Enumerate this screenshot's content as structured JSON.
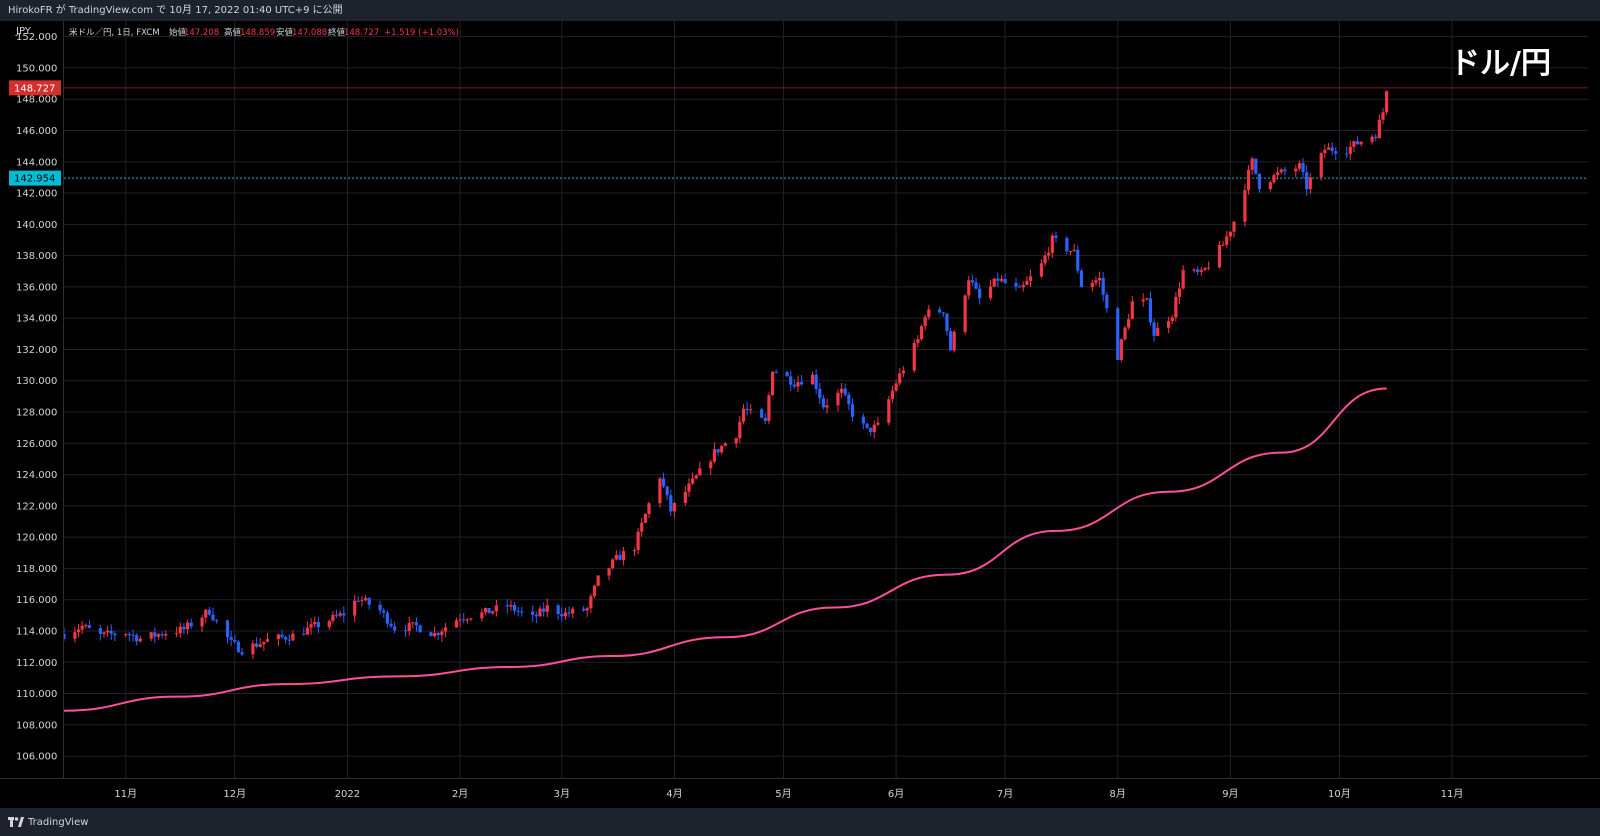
{
  "header": {
    "publish_text": "HirokoFR が TradingView.com で 10月 17, 2022 01:40 UTC+9 に公開"
  },
  "legend": {
    "symbol": "米ドル／円, 1日, FXCM",
    "open_label": "始値",
    "open_value": "147.208",
    "high_label": "高値",
    "high_value": "148.859",
    "low_label": "安値",
    "low_value": "147.088",
    "close_label": "終値",
    "close_value": "148.727",
    "change": "+1.519 (+1.03%)"
  },
  "overlay_title": "ドル/円",
  "footer": {
    "brand": "TradingView"
  },
  "colors": {
    "background": "#000000",
    "grid": "#1f222b",
    "up_candle": "#f23645",
    "down_candle": "#2962ff",
    "moving_average": "#ff4f9a",
    "last_price_label": "#d32f2f",
    "horizontal_line": "#00bcd4"
  },
  "chart_data": {
    "type": "candlestick",
    "currency_label": "JPY",
    "y_range": [
      104.6,
      153.0
    ],
    "y_ticks": [
      "152.000",
      "150.000",
      "148.000",
      "146.000",
      "144.000",
      "142.000",
      "140.000",
      "138.000",
      "136.000",
      "134.000",
      "132.000",
      "130.000",
      "128.000",
      "126.000",
      "124.000",
      "122.000",
      "120.000",
      "118.000",
      "116.000",
      "114.000",
      "112.000",
      "110.000",
      "108.000",
      "106.000"
    ],
    "x_labels": [
      {
        "label": "11月",
        "date": "2021-11-01"
      },
      {
        "label": "12月",
        "date": "2021-12-01"
      },
      {
        "label": "2022",
        "date": "2022-01-01"
      },
      {
        "label": "2月",
        "date": "2022-02-01"
      },
      {
        "label": "3月",
        "date": "2022-03-01"
      },
      {
        "label": "4月",
        "date": "2022-04-01"
      },
      {
        "label": "5月",
        "date": "2022-05-01"
      },
      {
        "label": "6月",
        "date": "2022-06-01"
      },
      {
        "label": "7月",
        "date": "2022-07-01"
      },
      {
        "label": "8月",
        "date": "2022-08-01"
      },
      {
        "label": "9月",
        "date": "2022-09-01"
      },
      {
        "label": "10月",
        "date": "2022-10-01"
      },
      {
        "label": "11月",
        "date": "2022-11-01"
      }
    ],
    "last_price": 148.727,
    "last_price_label": "148.727",
    "horizontal_level": 142.954,
    "horizontal_level_label": "142.954",
    "close_series": [
      {
        "date": "2021-10-15",
        "close": 113.8
      },
      {
        "date": "2021-10-20",
        "close": 114.3
      },
      {
        "date": "2021-10-25",
        "close": 113.7
      },
      {
        "date": "2021-11-01",
        "close": 113.9
      },
      {
        "date": "2021-11-05",
        "close": 113.5
      },
      {
        "date": "2021-11-12",
        "close": 113.9
      },
      {
        "date": "2021-11-17",
        "close": 114.1
      },
      {
        "date": "2021-11-24",
        "close": 115.3
      },
      {
        "date": "2021-11-30",
        "close": 113.2
      },
      {
        "date": "2021-12-03",
        "close": 112.8
      },
      {
        "date": "2021-12-10",
        "close": 113.4
      },
      {
        "date": "2021-12-17",
        "close": 113.7
      },
      {
        "date": "2021-12-24",
        "close": 114.4
      },
      {
        "date": "2021-12-31",
        "close": 115.1
      },
      {
        "date": "2022-01-04",
        "close": 116.1
      },
      {
        "date": "2022-01-10",
        "close": 115.3
      },
      {
        "date": "2022-01-14",
        "close": 114.2
      },
      {
        "date": "2022-01-20",
        "close": 114.3
      },
      {
        "date": "2022-01-25",
        "close": 113.8
      },
      {
        "date": "2022-02-01",
        "close": 114.9
      },
      {
        "date": "2022-02-07",
        "close": 115.1
      },
      {
        "date": "2022-02-14",
        "close": 115.6
      },
      {
        "date": "2022-02-21",
        "close": 114.8
      },
      {
        "date": "2022-02-25",
        "close": 115.5
      },
      {
        "date": "2022-03-02",
        "close": 115.1
      },
      {
        "date": "2022-03-08",
        "close": 115.4
      },
      {
        "date": "2022-03-11",
        "close": 117.3
      },
      {
        "date": "2022-03-16",
        "close": 118.6
      },
      {
        "date": "2022-03-21",
        "close": 119.4
      },
      {
        "date": "2022-03-25",
        "close": 122.1
      },
      {
        "date": "2022-03-28",
        "close": 123.9
      },
      {
        "date": "2022-03-31",
        "close": 121.7
      },
      {
        "date": "2022-04-06",
        "close": 123.5
      },
      {
        "date": "2022-04-12",
        "close": 125.4
      },
      {
        "date": "2022-04-18",
        "close": 126.6
      },
      {
        "date": "2022-04-20",
        "close": 128.2
      },
      {
        "date": "2022-04-26",
        "close": 127.3
      },
      {
        "date": "2022-04-28",
        "close": 130.8
      },
      {
        "date": "2022-05-04",
        "close": 129.9
      },
      {
        "date": "2022-05-09",
        "close": 130.3
      },
      {
        "date": "2022-05-12",
        "close": 128.4
      },
      {
        "date": "2022-05-17",
        "close": 129.3
      },
      {
        "date": "2022-05-20",
        "close": 127.9
      },
      {
        "date": "2022-05-24",
        "close": 126.8
      },
      {
        "date": "2022-05-27",
        "close": 127.1
      },
      {
        "date": "2022-06-01",
        "close": 129.9
      },
      {
        "date": "2022-06-07",
        "close": 132.6
      },
      {
        "date": "2022-06-09",
        "close": 134.3
      },
      {
        "date": "2022-06-14",
        "close": 134.5
      },
      {
        "date": "2022-06-16",
        "close": 132.0
      },
      {
        "date": "2022-06-21",
        "close": 136.6
      },
      {
        "date": "2022-06-24",
        "close": 135.2
      },
      {
        "date": "2022-06-29",
        "close": 136.5
      },
      {
        "date": "2022-07-05",
        "close": 135.7
      },
      {
        "date": "2022-07-11",
        "close": 137.4
      },
      {
        "date": "2022-07-14",
        "close": 139.0
      },
      {
        "date": "2022-07-20",
        "close": 138.2
      },
      {
        "date": "2022-07-22",
        "close": 136.1
      },
      {
        "date": "2022-07-27",
        "close": 136.5
      },
      {
        "date": "2022-08-01",
        "close": 131.6
      },
      {
        "date": "2022-08-05",
        "close": 135.0
      },
      {
        "date": "2022-08-09",
        "close": 135.0
      },
      {
        "date": "2022-08-11",
        "close": 133.0
      },
      {
        "date": "2022-08-16",
        "close": 134.3
      },
      {
        "date": "2022-08-19",
        "close": 137.0
      },
      {
        "date": "2022-08-24",
        "close": 136.8
      },
      {
        "date": "2022-08-30",
        "close": 138.7
      },
      {
        "date": "2022-09-02",
        "close": 140.2
      },
      {
        "date": "2022-09-07",
        "close": 144.0
      },
      {
        "date": "2022-09-09",
        "close": 142.5
      },
      {
        "date": "2022-09-14",
        "close": 143.2
      },
      {
        "date": "2022-09-20",
        "close": 143.7
      },
      {
        "date": "2022-09-22",
        "close": 142.4
      },
      {
        "date": "2022-09-27",
        "close": 144.8
      },
      {
        "date": "2022-10-03",
        "close": 144.8
      },
      {
        "date": "2022-10-06",
        "close": 145.2
      },
      {
        "date": "2022-10-11",
        "close": 145.8
      },
      {
        "date": "2022-10-13",
        "close": 147.2
      },
      {
        "date": "2022-10-14",
        "close": 148.727
      }
    ],
    "moving_average": [
      {
        "date": "2021-10-15",
        "value": 108.9
      },
      {
        "date": "2021-11-15",
        "value": 109.8
      },
      {
        "date": "2021-12-15",
        "value": 110.6
      },
      {
        "date": "2022-01-15",
        "value": 111.1
      },
      {
        "date": "2022-02-15",
        "value": 111.7
      },
      {
        "date": "2022-03-15",
        "value": 112.4
      },
      {
        "date": "2022-04-15",
        "value": 113.6
      },
      {
        "date": "2022-05-15",
        "value": 115.5
      },
      {
        "date": "2022-06-15",
        "value": 117.6
      },
      {
        "date": "2022-07-15",
        "value": 120.4
      },
      {
        "date": "2022-08-15",
        "value": 122.9
      },
      {
        "date": "2022-09-15",
        "value": 125.4
      },
      {
        "date": "2022-10-14",
        "value": 129.5
      }
    ]
  }
}
